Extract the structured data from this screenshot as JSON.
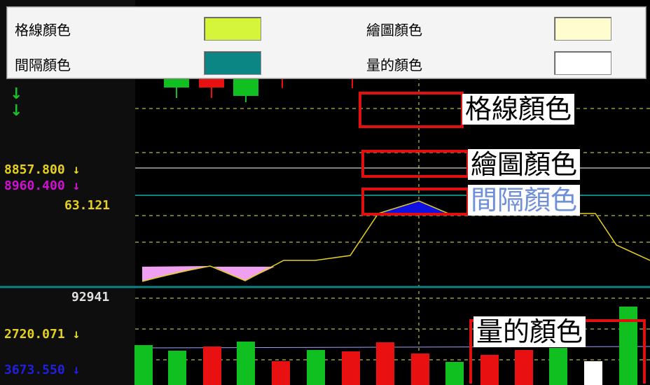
{
  "settings_panel": {
    "grid_color_label": "格線顏色",
    "grid_color": "#d4f53a",
    "plot_color_label": "繪圖顏色",
    "plot_color": "#fffccf",
    "interval_color_label": "間隔顏色",
    "interval_color": "#0b8684",
    "volume_color_label": "量的顏色",
    "volume_color": "#ffffff"
  },
  "axis_values": {
    "v1": "8857.800",
    "v2": "8960.400",
    "v3": "63.121",
    "v4": "92941",
    "v5": "2720.071",
    "v6": "3673.550"
  },
  "callouts": {
    "grid": "格線顏色",
    "plot": "繪圖顏色",
    "interval": "間隔顏色",
    "volume": "量的顏色"
  },
  "colors": {
    "up": "#e81010",
    "down": "#10c020",
    "grid_line": "#e6e64c",
    "interval_line": "#0b8684",
    "indicator_line": "#e6d020",
    "fill_pink": "#f0a0f0",
    "fill_blue": "#1010e0"
  }
}
